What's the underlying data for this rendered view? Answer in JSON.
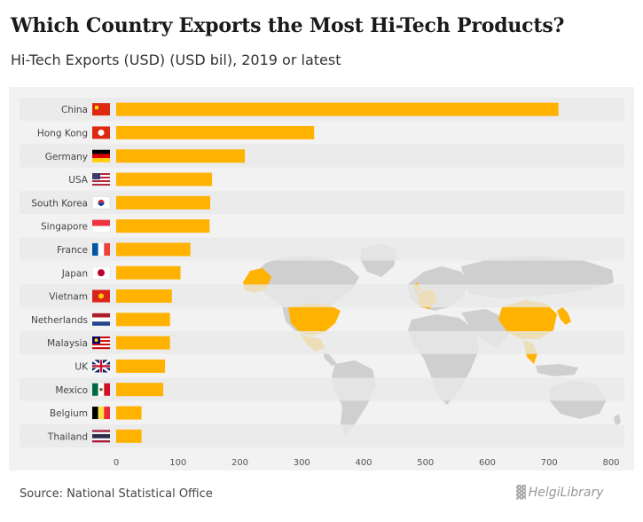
{
  "header": {
    "title": "Which Country Exports the Most Hi-Tech Products?",
    "subtitle": "Hi-Tech Exports (USD) (USD bil), 2019 or latest"
  },
  "footer": {
    "source": "Source: National Statistical Office",
    "logo_text": "HelgiLibrary"
  },
  "colors": {
    "bar": "#ffb300",
    "map_land": "#cfcfcf",
    "map_highlight": "#ffb300",
    "band": "#e8e8e8"
  },
  "chart_data": {
    "type": "bar",
    "orientation": "horizontal",
    "title": "Which Country Exports the Most Hi-Tech Products?",
    "subtitle": "Hi-Tech Exports (USD) (USD bil), 2019 or latest",
    "categories": [
      "China",
      "Hong Kong",
      "Germany",
      "USA",
      "South Korea",
      "Singapore",
      "France",
      "Japan",
      "Vietnam",
      "Netherlands",
      "Malaysia",
      "UK",
      "Mexico",
      "Belgium",
      "Thailand"
    ],
    "values": [
      715,
      320,
      208,
      155,
      152,
      151,
      120,
      104,
      90,
      87,
      87,
      79,
      76,
      41,
      41
    ],
    "xlim": [
      0,
      800
    ],
    "xticks": [
      0,
      100,
      200,
      300,
      400,
      500,
      600,
      700,
      800
    ],
    "grid": false,
    "flags": [
      "cn",
      "hk",
      "de",
      "us",
      "kr",
      "sg",
      "fr",
      "jp",
      "vn",
      "nl",
      "my",
      "uk",
      "mx",
      "be",
      "th"
    ]
  }
}
